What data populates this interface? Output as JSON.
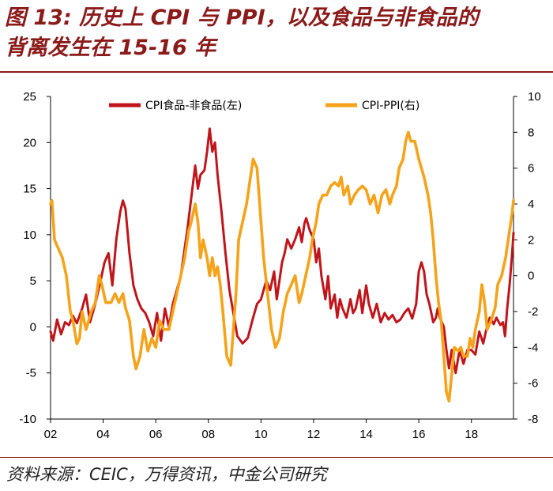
{
  "title": "图 13:  历史上 CPI 与 PPI，以及食品与非食品的背离发生在 15-16 年",
  "title_line1": "图 13:  历史上 CPI 与 PPI，以及食品与非食品的",
  "title_line2": "背离发生在 15-16 年",
  "source": "资料来源：CEIC，万得资讯，中金公司研究",
  "colors": {
    "accent": "#8b1a1a",
    "series_food": "#c0151b",
    "series_cpippi": "#f5a31a"
  },
  "chart_data": {
    "type": "line",
    "title": "",
    "x_tick_labels": [
      "02",
      "04",
      "06",
      "08",
      "10",
      "12",
      "14",
      "16",
      "18"
    ],
    "x_tick_years": [
      2002,
      2004,
      2006,
      2008,
      2010,
      2012,
      2014,
      2016,
      2018
    ],
    "xlim": [
      2002.0,
      2019.6
    ],
    "left_axis": {
      "ylim": [
        -10,
        25
      ],
      "ticks": [
        -10,
        -5,
        0,
        5,
        10,
        15,
        20,
        25
      ],
      "tick_labels": [
        "-10",
        "-5",
        "0",
        "5",
        "10",
        "15",
        "20",
        "25"
      ]
    },
    "right_axis": {
      "ylim": [
        -8,
        10
      ],
      "ticks": [
        -8,
        -6,
        -4,
        -2,
        0,
        2,
        4,
        6,
        8,
        10
      ],
      "tick_labels": [
        "-8",
        "-6",
        "-4",
        "-2",
        "0",
        "2",
        "4",
        "6",
        "8",
        "10"
      ]
    },
    "series": [
      {
        "name": "CPI食品-非食品(左)",
        "axis": "left",
        "color": "#c0151b",
        "points": [
          [
            2002.0,
            -0.5
          ],
          [
            2002.1,
            -1.5
          ],
          [
            2002.25,
            0.8
          ],
          [
            2002.4,
            -0.8
          ],
          [
            2002.55,
            0.5
          ],
          [
            2002.7,
            0.2
          ],
          [
            2002.85,
            1.2
          ],
          [
            2003.0,
            0.4
          ],
          [
            2003.2,
            2.0
          ],
          [
            2003.35,
            3.5
          ],
          [
            2003.5,
            0.5
          ],
          [
            2003.7,
            2.5
          ],
          [
            2003.9,
            5.0
          ],
          [
            2004.05,
            7.0
          ],
          [
            2004.2,
            8.0
          ],
          [
            2004.35,
            4.5
          ],
          [
            2004.5,
            9.5
          ],
          [
            2004.65,
            12.5
          ],
          [
            2004.75,
            13.7
          ],
          [
            2004.85,
            12.8
          ],
          [
            2005.0,
            8.0
          ],
          [
            2005.15,
            4.5
          ],
          [
            2005.3,
            3.0
          ],
          [
            2005.45,
            2.0
          ],
          [
            2005.6,
            1.5
          ],
          [
            2005.75,
            0.5
          ],
          [
            2005.9,
            -1.0
          ],
          [
            2006.05,
            1.5
          ],
          [
            2006.2,
            -1.5
          ],
          [
            2006.35,
            2.0
          ],
          [
            2006.5,
            0.0
          ],
          [
            2006.65,
            2.5
          ],
          [
            2006.8,
            4.0
          ],
          [
            2006.95,
            5.5
          ],
          [
            2007.05,
            7.5
          ],
          [
            2007.2,
            10.5
          ],
          [
            2007.35,
            14.0
          ],
          [
            2007.5,
            17.5
          ],
          [
            2007.6,
            15.0
          ],
          [
            2007.7,
            16.5
          ],
          [
            2007.85,
            17.0
          ],
          [
            2007.95,
            19.0
          ],
          [
            2008.05,
            21.5
          ],
          [
            2008.15,
            19.0
          ],
          [
            2008.25,
            20.0
          ],
          [
            2008.35,
            16.5
          ],
          [
            2008.5,
            12.5
          ],
          [
            2008.65,
            8.0
          ],
          [
            2008.8,
            4.0
          ],
          [
            2008.95,
            1.5
          ],
          [
            2009.1,
            -1.0
          ],
          [
            2009.3,
            -1.8
          ],
          [
            2009.5,
            -1.2
          ],
          [
            2009.7,
            1.0
          ],
          [
            2009.85,
            2.5
          ],
          [
            2010.0,
            3.0
          ],
          [
            2010.2,
            5.0
          ],
          [
            2010.35,
            4.0
          ],
          [
            2010.5,
            6.0
          ],
          [
            2010.6,
            3.0
          ],
          [
            2010.7,
            5.0
          ],
          [
            2010.8,
            7.0
          ],
          [
            2010.9,
            8.0
          ],
          [
            2011.0,
            9.5
          ],
          [
            2011.15,
            8.5
          ],
          [
            2011.3,
            9.5
          ],
          [
            2011.45,
            10.8
          ],
          [
            2011.55,
            9.2
          ],
          [
            2011.65,
            11.2
          ],
          [
            2011.72,
            11.8
          ],
          [
            2011.85,
            10.5
          ],
          [
            2012.0,
            9.5
          ],
          [
            2012.1,
            7.0
          ],
          [
            2012.2,
            8.5
          ],
          [
            2012.3,
            5.5
          ],
          [
            2012.45,
            3.0
          ],
          [
            2012.55,
            5.5
          ],
          [
            2012.65,
            2.0
          ],
          [
            2012.8,
            3.5
          ],
          [
            2012.9,
            1.0
          ],
          [
            2013.0,
            3.0
          ],
          [
            2013.1,
            2.0
          ],
          [
            2013.25,
            1.0
          ],
          [
            2013.4,
            3.0
          ],
          [
            2013.5,
            1.5
          ],
          [
            2013.6,
            2.0
          ],
          [
            2013.75,
            4.0
          ],
          [
            2013.85,
            1.5
          ],
          [
            2014.0,
            4.5
          ],
          [
            2014.1,
            2.5
          ],
          [
            2014.25,
            1.0
          ],
          [
            2014.4,
            2.5
          ],
          [
            2014.55,
            0.5
          ],
          [
            2014.7,
            1.5
          ],
          [
            2014.85,
            0.8
          ],
          [
            2015.0,
            1.3
          ],
          [
            2015.15,
            0.5
          ],
          [
            2015.3,
            0.8
          ],
          [
            2015.45,
            1.5
          ],
          [
            2015.6,
            2.0
          ],
          [
            2015.75,
            0.9
          ],
          [
            2015.9,
            2.5
          ],
          [
            2016.0,
            6.0
          ],
          [
            2016.1,
            7.0
          ],
          [
            2016.2,
            6.0
          ],
          [
            2016.3,
            3.5
          ],
          [
            2016.4,
            2.5
          ],
          [
            2016.55,
            0.5
          ],
          [
            2016.65,
            1.0
          ],
          [
            2016.72,
            2.0
          ],
          [
            2016.8,
            1.0
          ],
          [
            2016.95,
            0.0
          ],
          [
            2017.05,
            -2.5
          ],
          [
            2017.15,
            -4.5
          ],
          [
            2017.25,
            -2.5
          ],
          [
            2017.4,
            -5.0
          ],
          [
            2017.55,
            -2.5
          ],
          [
            2017.7,
            -4.0
          ],
          [
            2017.85,
            -2.5
          ],
          [
            2018.0,
            -2.5
          ],
          [
            2018.15,
            -3.0
          ],
          [
            2018.3,
            -0.5
          ],
          [
            2018.45,
            -1.8
          ],
          [
            2018.55,
            -0.5
          ],
          [
            2018.7,
            1.0
          ],
          [
            2018.85,
            0.3
          ],
          [
            2018.95,
            1.0
          ],
          [
            2019.1,
            0.2
          ],
          [
            2019.2,
            0.5
          ],
          [
            2019.28,
            -1.0
          ],
          [
            2019.36,
            2.0
          ],
          [
            2019.45,
            4.5
          ],
          [
            2019.55,
            8.0
          ],
          [
            2019.6,
            10.2
          ]
        ]
      },
      {
        "name": "CPI-PPI(右)",
        "axis": "right",
        "color": "#f5a31a",
        "points": [
          [
            2002.0,
            4.0
          ],
          [
            2002.05,
            4.2
          ],
          [
            2002.15,
            2.0
          ],
          [
            2002.3,
            1.5
          ],
          [
            2002.45,
            1.0
          ],
          [
            2002.6,
            0.0
          ],
          [
            2002.75,
            -2.0
          ],
          [
            2002.85,
            -2.5
          ],
          [
            2003.0,
            -3.8
          ],
          [
            2003.1,
            -3.5
          ],
          [
            2003.2,
            -2.0
          ],
          [
            2003.35,
            -3.0
          ],
          [
            2003.55,
            -2.0
          ],
          [
            2003.7,
            -1.5
          ],
          [
            2003.85,
            0.0
          ],
          [
            2003.95,
            -0.5
          ],
          [
            2004.1,
            -1.5
          ],
          [
            2004.3,
            -1.5
          ],
          [
            2004.45,
            -1.0
          ],
          [
            2004.6,
            -1.5
          ],
          [
            2004.75,
            -1.0
          ],
          [
            2004.85,
            -1.8
          ],
          [
            2005.0,
            -2.5
          ],
          [
            2005.15,
            -4.5
          ],
          [
            2005.25,
            -5.2
          ],
          [
            2005.4,
            -4.5
          ],
          [
            2005.55,
            -3.0
          ],
          [
            2005.7,
            -4.2
          ],
          [
            2005.85,
            -3.5
          ],
          [
            2006.0,
            -4.0
          ],
          [
            2006.15,
            -2.5
          ],
          [
            2006.3,
            -3.0
          ],
          [
            2006.5,
            -3.0
          ],
          [
            2006.65,
            -2.0
          ],
          [
            2006.8,
            -1.0
          ],
          [
            2006.95,
            0.0
          ],
          [
            2007.1,
            1.0
          ],
          [
            2007.25,
            2.5
          ],
          [
            2007.35,
            3.0
          ],
          [
            2007.5,
            4.0
          ],
          [
            2007.6,
            3.0
          ],
          [
            2007.7,
            1.0
          ],
          [
            2007.8,
            2.0
          ],
          [
            2007.95,
            1.0
          ],
          [
            2008.05,
            0.0
          ],
          [
            2008.15,
            1.0
          ],
          [
            2008.25,
            0.0
          ],
          [
            2008.35,
            0.5
          ],
          [
            2008.45,
            -0.5
          ],
          [
            2008.55,
            -2.0
          ],
          [
            2008.7,
            -4.5
          ],
          [
            2008.85,
            -5.0
          ],
          [
            2008.95,
            -3.0
          ],
          [
            2009.05,
            -1.0
          ],
          [
            2009.15,
            2.0
          ],
          [
            2009.3,
            3.0
          ],
          [
            2009.45,
            4.0
          ],
          [
            2009.55,
            5.0
          ],
          [
            2009.7,
            6.5
          ],
          [
            2009.85,
            6.0
          ],
          [
            2009.95,
            4.0
          ],
          [
            2010.1,
            1.0
          ],
          [
            2010.25,
            -1.0
          ],
          [
            2010.4,
            -3.0
          ],
          [
            2010.55,
            -4.0
          ],
          [
            2010.7,
            -3.5
          ],
          [
            2010.85,
            -2.0
          ],
          [
            2011.0,
            -1.0
          ],
          [
            2011.15,
            -0.5
          ],
          [
            2011.3,
            0.0
          ],
          [
            2011.45,
            -1.5
          ],
          [
            2011.55,
            -1.0
          ],
          [
            2011.7,
            0.0
          ],
          [
            2011.85,
            1.0
          ],
          [
            2011.95,
            2.0
          ],
          [
            2012.1,
            3.0
          ],
          [
            2012.2,
            4.0
          ],
          [
            2012.35,
            4.5
          ],
          [
            2012.5,
            4.5
          ],
          [
            2012.65,
            5.0
          ],
          [
            2012.8,
            5.2
          ],
          [
            2012.95,
            5.0
          ],
          [
            2013.05,
            5.5
          ],
          [
            2013.15,
            4.5
          ],
          [
            2013.3,
            5.0
          ],
          [
            2013.4,
            4.0
          ],
          [
            2013.55,
            4.5
          ],
          [
            2013.7,
            4.8
          ],
          [
            2013.85,
            5.0
          ],
          [
            2014.0,
            4.8
          ],
          [
            2014.15,
            4.0
          ],
          [
            2014.3,
            4.5
          ],
          [
            2014.45,
            3.5
          ],
          [
            2014.6,
            4.5
          ],
          [
            2014.75,
            4.8
          ],
          [
            2014.9,
            4.0
          ],
          [
            2015.0,
            4.5
          ],
          [
            2015.15,
            5.0
          ],
          [
            2015.25,
            6.0
          ],
          [
            2015.4,
            6.5
          ],
          [
            2015.5,
            7.5
          ],
          [
            2015.6,
            8.0
          ],
          [
            2015.7,
            7.5
          ],
          [
            2015.85,
            7.5
          ],
          [
            2016.0,
            6.5
          ],
          [
            2016.1,
            6.0
          ],
          [
            2016.2,
            5.5
          ],
          [
            2016.35,
            4.5
          ],
          [
            2016.45,
            3.5
          ],
          [
            2016.55,
            2.0
          ],
          [
            2016.65,
            0.0
          ],
          [
            2016.75,
            -1.5
          ],
          [
            2016.85,
            -2.5
          ],
          [
            2016.95,
            -4.5
          ],
          [
            2017.05,
            -6.5
          ],
          [
            2017.15,
            -7.0
          ],
          [
            2017.25,
            -5.5
          ],
          [
            2017.35,
            -4.0
          ],
          [
            2017.5,
            -4.2
          ],
          [
            2017.6,
            -4.0
          ],
          [
            2017.7,
            -4.5
          ],
          [
            2017.85,
            -4.5
          ],
          [
            2017.95,
            -3.5
          ],
          [
            2018.05,
            -4.0
          ],
          [
            2018.15,
            -3.0
          ],
          [
            2018.3,
            -2.0
          ],
          [
            2018.4,
            -0.5
          ],
          [
            2018.5,
            -1.5
          ],
          [
            2018.6,
            -3.0
          ],
          [
            2018.75,
            -2.5
          ],
          [
            2018.9,
            -1.8
          ],
          [
            2019.0,
            -0.5
          ],
          [
            2019.15,
            0.0
          ],
          [
            2019.3,
            1.0
          ],
          [
            2019.45,
            2.5
          ],
          [
            2019.55,
            3.5
          ],
          [
            2019.6,
            4.2
          ]
        ]
      }
    ]
  }
}
